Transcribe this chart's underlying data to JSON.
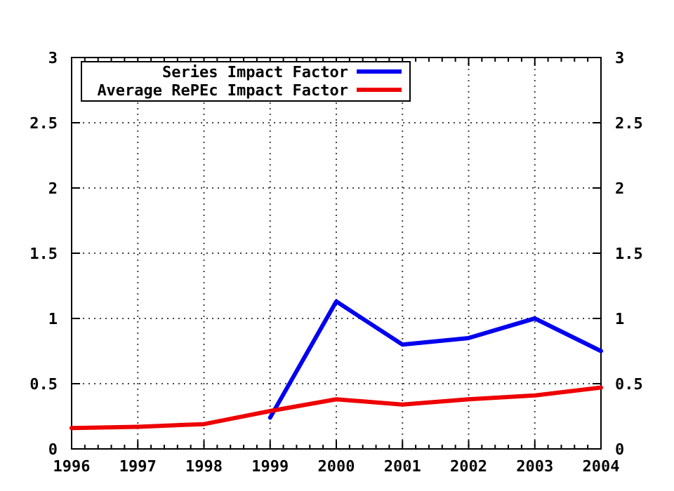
{
  "chart_data": {
    "type": "line",
    "x": [
      1996,
      1997,
      1998,
      1999,
      2000,
      2001,
      2002,
      2003,
      2004
    ],
    "series": [
      {
        "name": "Series Impact Factor",
        "color": "#0000ee",
        "values": [
          null,
          null,
          null,
          0.24,
          1.13,
          0.8,
          0.85,
          1.0,
          0.75
        ]
      },
      {
        "name": "Average RePEc Impact Factor",
        "color": "#ee0000",
        "values": [
          0.16,
          0.17,
          0.19,
          0.29,
          0.38,
          0.34,
          0.38,
          0.41,
          0.47
        ]
      }
    ],
    "xlim": [
      1996,
      2004
    ],
    "xticks": [
      1996,
      1997,
      1998,
      1999,
      2000,
      2001,
      2002,
      2003,
      2004
    ],
    "ylim": [
      0,
      3
    ],
    "yticks": [
      0,
      0.5,
      1,
      1.5,
      2,
      2.5,
      3
    ],
    "y2lim": [
      0,
      3
    ],
    "y2ticks": [
      0,
      0.5,
      1,
      1.5,
      2,
      2.5,
      3
    ],
    "grid": true,
    "legend": "top left",
    "line_style": "solid",
    "marker": "none"
  }
}
